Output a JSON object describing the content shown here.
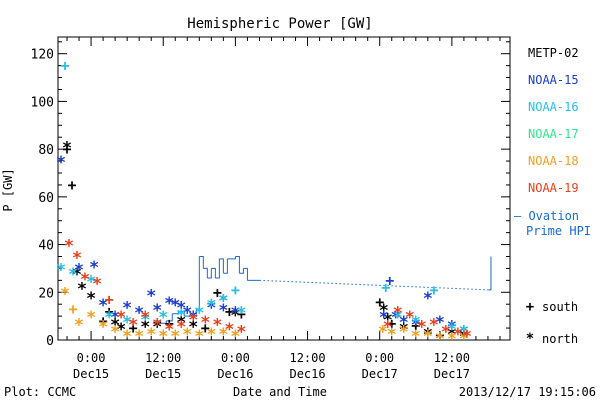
{
  "chart_data": {
    "type": "scatter",
    "title": "Hemispheric Power [GW]",
    "ylabel": "P [GW]",
    "xlabel": "Date and Time",
    "ylim": [
      0,
      127
    ],
    "xlim": [
      "2013-12-14 18:30",
      "2013-12-17 21:40"
    ],
    "yticks": [
      0,
      20,
      40,
      60,
      80,
      100,
      120
    ],
    "xticks": [
      {
        "time": "2013-12-15 00:00",
        "line1": "0:00",
        "line2": "Dec15"
      },
      {
        "time": "2013-12-15 12:00",
        "line1": "12:00",
        "line2": "Dec15"
      },
      {
        "time": "2013-12-16 00:00",
        "line1": "0:00",
        "line2": "Dec16"
      },
      {
        "time": "2013-12-16 12:00",
        "line1": "12:00",
        "line2": "Dec16"
      },
      {
        "time": "2013-12-17 00:00",
        "line1": "0:00",
        "line2": "Dec17"
      },
      {
        "time": "2013-12-17 12:00",
        "line1": "12:00",
        "line2": "Dec17"
      }
    ],
    "legend": [
      "METP-02",
      "NOAA-15",
      "NOAA-16",
      "NOAA-17",
      "NOAA-18",
      "NOAA-19"
    ],
    "legend_colors": [
      "#000000",
      "#1a3dcc",
      "#22c0e8",
      "#2ee88e",
      "#f0a020",
      "#e8401a"
    ],
    "ovation_line1": "— Ovation",
    "ovation_line2": "Prime HPI",
    "ovation_color": "#1a6ad0",
    "marker_legend": [
      {
        "symbol": "+",
        "label": "south"
      },
      {
        "symbol": "*",
        "label": "north"
      }
    ],
    "footer_left": "Plot: CCMC",
    "footer_right": "2013/12/17 19:15:06",
    "ovation": [
      [
        "2013-12-15 10:30",
        8
      ],
      [
        "2013-12-15 11:30",
        7
      ],
      [
        "2013-12-15 12:30",
        8
      ],
      [
        "2013-12-15 13:30",
        11
      ],
      [
        "2013-12-15 14:30",
        12
      ],
      [
        "2013-12-15 15:30",
        10
      ],
      [
        "2013-12-15 16:30",
        11
      ],
      [
        "2013-12-15 17:30",
        13
      ],
      [
        "2013-12-15 18:00",
        35
      ],
      [
        "2013-12-15 18:40",
        30
      ],
      [
        "2013-12-15 19:20",
        26
      ],
      [
        "2013-12-15 20:00",
        30
      ],
      [
        "2013-12-15 20:40",
        26
      ],
      [
        "2013-12-15 21:20",
        34
      ],
      [
        "2013-12-15 22:00",
        28
      ],
      [
        "2013-12-15 22:40",
        34
      ],
      [
        "2013-12-16 00:00",
        35
      ],
      [
        "2013-12-16 00:40",
        28
      ],
      [
        "2013-12-16 01:20",
        30
      ],
      [
        "2013-12-16 02:00",
        25
      ],
      [
        "2013-12-16 04:00",
        25
      ],
      [
        "2013-12-17 18:10",
        21
      ],
      [
        "2013-12-17 18:10",
        21
      ],
      [
        "2013-12-17 18:30",
        35
      ]
    ],
    "series": [
      {
        "name": "METP-02",
        "points": [
          [
            "2013-12-14 20:00",
            80,
            "+"
          ],
          [
            "2013-12-14 20:00",
            81,
            "*"
          ],
          [
            "2013-12-14 20:50",
            65,
            "+"
          ],
          [
            "2013-12-14 21:40",
            28,
            "*"
          ],
          [
            "2013-12-14 22:30",
            22,
            "*"
          ],
          [
            "2013-12-15 00:00",
            18,
            "*"
          ],
          [
            "2013-12-15 02:00",
            8,
            "+"
          ],
          [
            "2013-12-15 03:00",
            12,
            "+"
          ],
          [
            "2013-12-15 04:00",
            7,
            "*"
          ],
          [
            "2013-12-15 05:00",
            5,
            "*"
          ],
          [
            "2013-12-15 07:00",
            5,
            "+"
          ],
          [
            "2013-12-15 09:00",
            6,
            "*"
          ],
          [
            "2013-12-15 11:00",
            6,
            "*"
          ],
          [
            "2013-12-15 13:00",
            7,
            "+"
          ],
          [
            "2013-12-15 15:00",
            8,
            "*"
          ],
          [
            "2013-12-15 17:00",
            6,
            "*"
          ],
          [
            "2013-12-15 19:00",
            5,
            "+"
          ],
          [
            "2013-12-15 21:00",
            20,
            "+"
          ],
          [
            "2013-12-15 22:00",
            17,
            "*"
          ],
          [
            "2013-12-15 23:00",
            12,
            "+"
          ],
          [
            "2013-12-16 00:00",
            11,
            "*"
          ],
          [
            "2013-12-16 01:00",
            11,
            "+"
          ],
          [
            "2013-12-17 00:00",
            16,
            "+"
          ],
          [
            "2013-12-17 00:40",
            13,
            "*"
          ],
          [
            "2013-12-17 01:20",
            9,
            "*"
          ],
          [
            "2013-12-17 02:00",
            7,
            "+"
          ],
          [
            "2013-12-17 04:00",
            5,
            "*"
          ],
          [
            "2013-12-17 06:00",
            6,
            "+"
          ],
          [
            "2013-12-17 08:00",
            3,
            "*"
          ],
          [
            "2013-12-17 10:00",
            2,
            "+"
          ],
          [
            "2013-12-17 12:00",
            3,
            "*"
          ],
          [
            "2013-12-17 14:00",
            2,
            "*"
          ]
        ]
      },
      {
        "name": "NOAA-15",
        "points": [
          [
            "2013-12-14 19:00",
            75,
            "*"
          ],
          [
            "2013-12-14 22:00",
            30,
            "*"
          ],
          [
            "2013-12-15 00:30",
            31,
            "*"
          ],
          [
            "2013-12-15 02:00",
            15,
            "*"
          ],
          [
            "2013-12-15 04:00",
            10,
            "*"
          ],
          [
            "2013-12-15 06:00",
            14,
            "*"
          ],
          [
            "2013-12-15 08:00",
            12,
            "*"
          ],
          [
            "2013-12-15 10:00",
            19,
            "*"
          ],
          [
            "2013-12-15 11:00",
            13,
            "*"
          ],
          [
            "2013-12-15 13:00",
            16,
            "*"
          ],
          [
            "2013-12-15 14:00",
            15,
            "*"
          ],
          [
            "2013-12-15 15:00",
            14,
            "*"
          ],
          [
            "2013-12-15 16:00",
            12,
            "*"
          ],
          [
            "2013-12-15 17:00",
            10,
            "*"
          ],
          [
            "2013-12-15 20:00",
            14,
            "*"
          ],
          [
            "2013-12-15 22:00",
            13,
            "*"
          ],
          [
            "2013-12-16 00:00",
            12,
            "*"
          ],
          [
            "2013-12-17 00:40",
            10,
            "*"
          ],
          [
            "2013-12-17 01:40",
            25,
            "+"
          ],
          [
            "2013-12-17 02:40",
            10,
            "*"
          ],
          [
            "2013-12-17 04:00",
            8,
            "*"
          ],
          [
            "2013-12-17 06:00",
            7,
            "*"
          ],
          [
            "2013-12-17 08:00",
            18,
            "*"
          ],
          [
            "2013-12-17 10:00",
            8,
            "*"
          ],
          [
            "2013-12-17 12:00",
            6,
            "*"
          ],
          [
            "2013-12-17 14:00",
            4,
            "*"
          ]
        ]
      },
      {
        "name": "NOAA-16",
        "points": [
          [
            "2013-12-14 19:40",
            115,
            "+"
          ],
          [
            "2013-12-14 19:00",
            30,
            "*"
          ],
          [
            "2013-12-14 21:00",
            28,
            "*"
          ],
          [
            "2013-12-15 00:00",
            25,
            "*"
          ],
          [
            "2013-12-15 03:00",
            10,
            "*"
          ],
          [
            "2013-12-15 06:00",
            8,
            "*"
          ],
          [
            "2013-12-15 09:00",
            9,
            "*"
          ],
          [
            "2013-12-15 12:00",
            10,
            "*"
          ],
          [
            "2013-12-15 15:00",
            11,
            "*"
          ],
          [
            "2013-12-15 18:00",
            12,
            "*"
          ],
          [
            "2013-12-15 20:00",
            15,
            "*"
          ],
          [
            "2013-12-15 22:00",
            17,
            "*"
          ],
          [
            "2013-12-16 00:00",
            21,
            "+"
          ],
          [
            "2013-12-16 01:00",
            12,
            "*"
          ],
          [
            "2013-12-17 01:00",
            22,
            "+"
          ],
          [
            "2013-12-17 03:00",
            10,
            "*"
          ],
          [
            "2013-12-17 06:00",
            8,
            "*"
          ],
          [
            "2013-12-17 09:00",
            21,
            "+"
          ],
          [
            "2013-12-17 12:00",
            5,
            "*"
          ],
          [
            "2013-12-17 14:00",
            4,
            "*"
          ]
        ]
      },
      {
        "name": "NOAA-17",
        "points": []
      },
      {
        "name": "NOAA-18",
        "points": [
          [
            "2013-12-14 19:40",
            20,
            "*"
          ],
          [
            "2013-12-14 21:00",
            13,
            "+"
          ],
          [
            "2013-12-14 22:00",
            7,
            "*"
          ],
          [
            "2013-12-15 00:00",
            10,
            "*"
          ],
          [
            "2013-12-15 02:00",
            6,
            "*"
          ],
          [
            "2013-12-15 04:00",
            4,
            "*"
          ],
          [
            "2013-12-15 06:00",
            2,
            "*"
          ],
          [
            "2013-12-15 08:00",
            2,
            "*"
          ],
          [
            "2013-12-15 10:00",
            3,
            "*"
          ],
          [
            "2013-12-15 12:00",
            2,
            "*"
          ],
          [
            "2013-12-15 14:00",
            2,
            "*"
          ],
          [
            "2013-12-15 16:00",
            3,
            "*"
          ],
          [
            "2013-12-15 18:00",
            2,
            "*"
          ],
          [
            "2013-12-15 20:00",
            3,
            "*"
          ],
          [
            "2013-12-15 22:00",
            3,
            "*"
          ],
          [
            "2013-12-16 00:00",
            2,
            "*"
          ],
          [
            "2013-12-17 00:30",
            4,
            "*"
          ],
          [
            "2013-12-17 02:00",
            3,
            "*"
          ],
          [
            "2013-12-17 04:00",
            4,
            "*"
          ],
          [
            "2013-12-17 06:00",
            2,
            "*"
          ],
          [
            "2013-12-17 08:00",
            2,
            "*"
          ],
          [
            "2013-12-17 10:00",
            1,
            "*"
          ],
          [
            "2013-12-17 12:00",
            1,
            "*"
          ],
          [
            "2013-12-17 14:00",
            1,
            "*"
          ]
        ]
      },
      {
        "name": "NOAA-19",
        "points": [
          [
            "2013-12-14 20:20",
            40,
            "*"
          ],
          [
            "2013-12-14 21:40",
            35,
            "*"
          ],
          [
            "2013-12-14 23:00",
            26,
            "*"
          ],
          [
            "2013-12-15 01:00",
            24,
            "*"
          ],
          [
            "2013-12-15 03:00",
            17,
            "+"
          ],
          [
            "2013-12-15 05:00",
            10,
            "*"
          ],
          [
            "2013-12-15 07:00",
            7,
            "*"
          ],
          [
            "2013-12-15 09:00",
            10,
            "*"
          ],
          [
            "2013-12-15 11:00",
            7,
            "*"
          ],
          [
            "2013-12-15 13:00",
            5,
            "*"
          ],
          [
            "2013-12-15 15:00",
            6,
            "*"
          ],
          [
            "2013-12-15 17:00",
            9,
            "*"
          ],
          [
            "2013-12-15 19:00",
            8,
            "*"
          ],
          [
            "2013-12-15 21:00",
            7,
            "*"
          ],
          [
            "2013-12-15 23:00",
            5,
            "*"
          ],
          [
            "2013-12-16 01:00",
            4,
            "*"
          ],
          [
            "2013-12-17 01:20",
            6,
            "*"
          ],
          [
            "2013-12-17 03:00",
            12,
            "*"
          ],
          [
            "2013-12-17 05:00",
            10,
            "*"
          ],
          [
            "2013-12-17 07:00",
            6,
            "*"
          ],
          [
            "2013-12-17 09:00",
            7,
            "*"
          ],
          [
            "2013-12-17 11:00",
            4,
            "*"
          ],
          [
            "2013-12-17 13:00",
            3,
            "*"
          ],
          [
            "2013-12-17 14:30",
            2,
            "*"
          ]
        ]
      }
    ]
  }
}
